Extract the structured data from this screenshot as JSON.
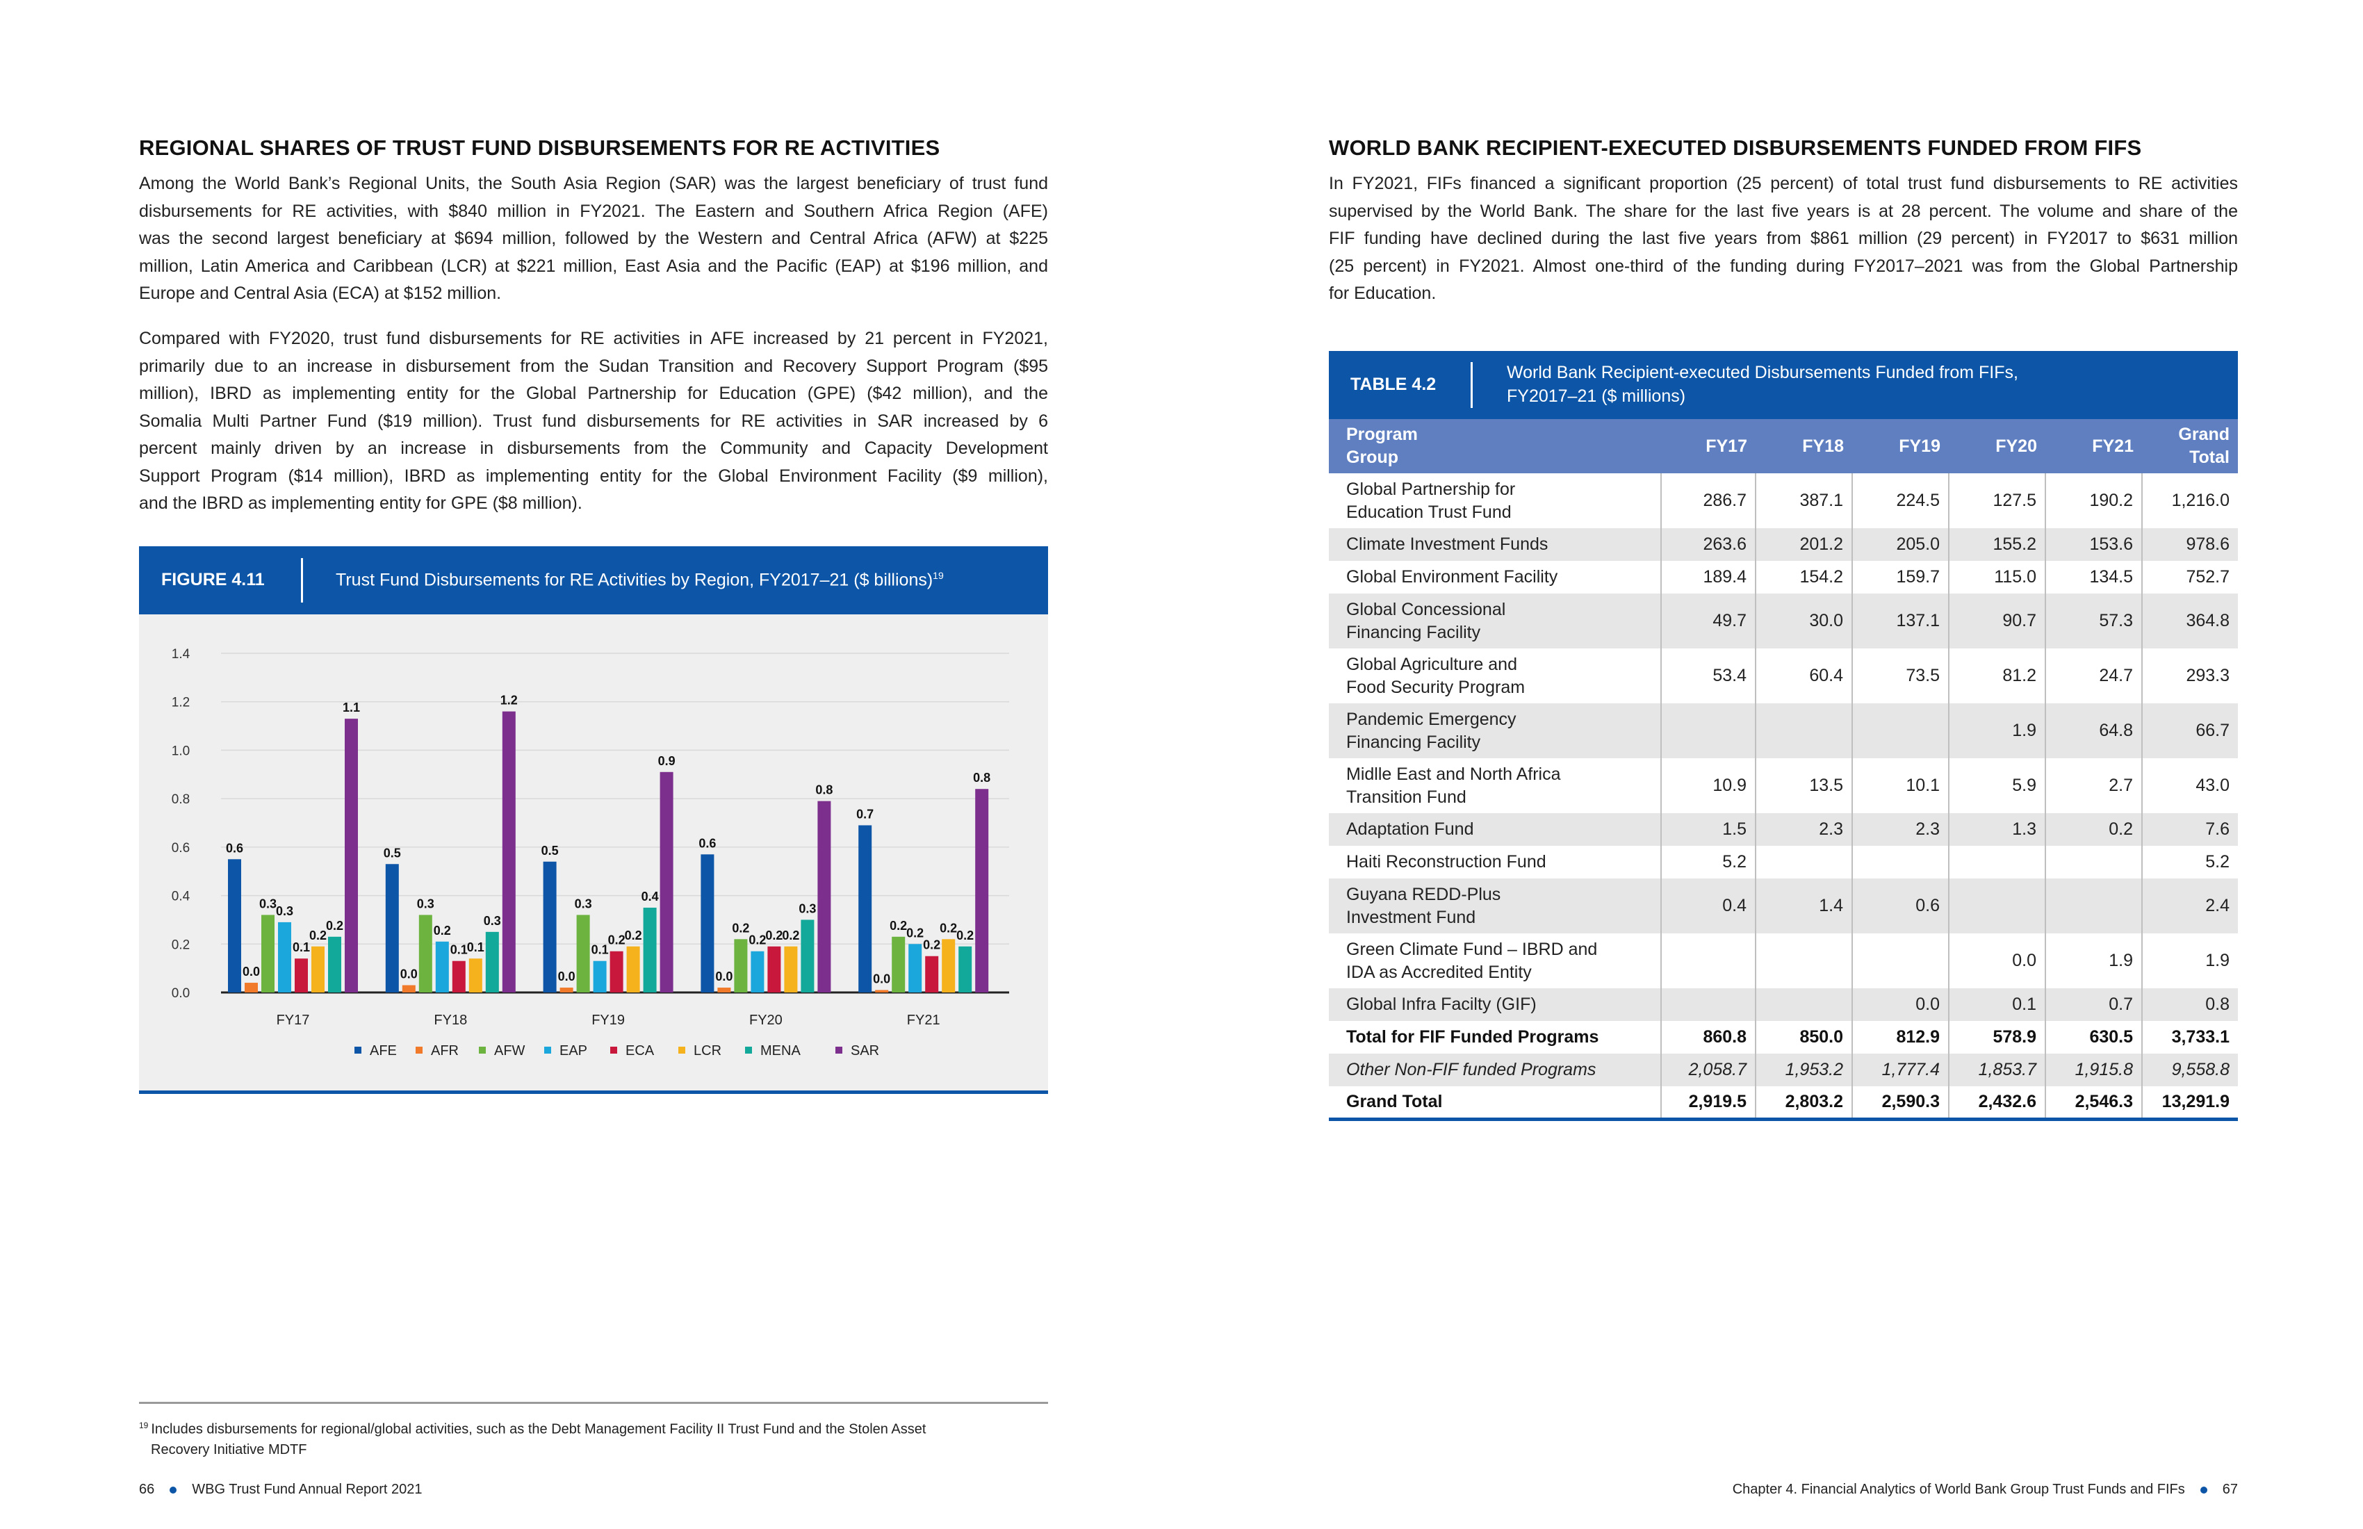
{
  "left_page": {
    "title": "REGIONAL SHARES OF TRUST FUND DISBURSEMENTS FOR RE ACTIVITIES",
    "paragraphs": [
      [
        "Among the World Bank’s Regional Units, the South Asia Region (SAR) was the largest beneficiary of trust fund",
        "disbursements for RE activities, with $840 million in FY2021. The Eastern and Southern Africa Region (AFE)",
        "was the second largest beneficiary at $694 million, followed by the Western and Central Africa (AFW) at $225",
        "million, Latin America and Caribbean (LCR) at $221 million, East Asia and the Pacific (EAP) at $196 million, and",
        "Europe and Central Asia (ECA) at $152 million."
      ],
      [
        "Compared with FY2020, trust fund disbursements for RE activities in AFE increased by 21 percent in FY2021,",
        "primarily due to an increase in disbursement from the Sudan Transition and Recovery Support Program ($95",
        "million), IBRD as implementing entity for the Global Partnership for Education (GPE) ($42 million), and the",
        "Somalia Multi Partner Fund ($19 million). Trust fund disbursements for RE activities in SAR increased by 6",
        "percent mainly driven by an increase in disbursements from the Community and Capacity Development",
        "Support Program ($14 million), IBRD as implementing entity for the Global Environment Facility ($9 million),",
        "and the IBRD as implementing entity for GPE ($8 million)."
      ]
    ],
    "figure": {
      "label": "FIGURE 4.11",
      "title": "Trust Fund Disbursements for RE Activities by Region, FY2017–21 ($ billions)",
      "footnote_ref": "19"
    },
    "footnote": {
      "number": "19",
      "line1": "Includes disbursements for regional/global activities, such as the Debt Management Facility II Trust Fund and the Stolen Asset",
      "line2": "Recovery Initiative MDTF"
    },
    "footer": {
      "page_number": "66",
      "report": "WBG Trust Fund Annual Report 2021"
    }
  },
  "chart_data": {
    "type": "bar",
    "categories": [
      "FY17",
      "FY18",
      "FY19",
      "FY20",
      "FY21"
    ],
    "ylim": [
      0,
      1.4
    ],
    "yticks": [
      "0.0",
      "0.2",
      "0.4",
      "0.6",
      "0.8",
      "1.0",
      "1.2",
      "1.4"
    ],
    "grid": true,
    "legend_position": "bottom",
    "series": [
      {
        "name": "AFE",
        "color": "#0d55a6",
        "values": [
          0.55,
          0.53,
          0.54,
          0.57,
          0.69
        ],
        "labels": [
          "0.6",
          "0.5",
          "0.5",
          "0.6",
          "0.7"
        ]
      },
      {
        "name": "AFR",
        "color": "#f07a2a",
        "values": [
          0.04,
          0.03,
          0.02,
          0.02,
          0.01
        ],
        "labels": [
          "0.0",
          "0.0",
          "0.0",
          "0.0",
          "0.0"
        ]
      },
      {
        "name": "AFW",
        "color": "#6cb33f",
        "values": [
          0.32,
          0.32,
          0.32,
          0.22,
          0.23
        ],
        "labels": [
          "0.3",
          "0.3",
          "0.3",
          "0.2",
          "0.2"
        ]
      },
      {
        "name": "EAP",
        "color": "#1ba6dc",
        "values": [
          0.29,
          0.21,
          0.13,
          0.17,
          0.2
        ],
        "labels": [
          "0.3",
          "0.2",
          "0.1",
          "0.2",
          "0.2"
        ]
      },
      {
        "name": "ECA",
        "color": "#c8193c",
        "values": [
          0.14,
          0.13,
          0.17,
          0.19,
          0.15
        ],
        "labels": [
          "0.1",
          "0.1",
          "0.2",
          "0.2",
          "0.2"
        ]
      },
      {
        "name": "LCR",
        "color": "#f6b21c",
        "values": [
          0.19,
          0.14,
          0.19,
          0.19,
          0.22
        ],
        "labels": [
          "0.2",
          "0.1",
          "0.2",
          "0.2",
          "0.2"
        ]
      },
      {
        "name": "MENA",
        "color": "#12a99a",
        "values": [
          0.23,
          0.25,
          0.35,
          0.3,
          0.19
        ],
        "labels": [
          "0.2",
          "0.3",
          "0.4",
          "0.3",
          "0.2"
        ]
      },
      {
        "name": "SAR",
        "color": "#7d2f8e",
        "values": [
          1.13,
          1.16,
          0.91,
          0.79,
          0.84
        ],
        "labels": [
          "1.1",
          "1.2",
          "0.9",
          "0.8",
          "0.8"
        ]
      }
    ]
  },
  "right_page": {
    "title": "WORLD BANK RECIPIENT-EXECUTED DISBURSEMENTS FUNDED FROM FIFS",
    "paragraph": [
      "In FY2021, FIFs financed a significant proportion (25 percent) of total trust fund disbursements to RE activities",
      "supervised by the World Bank. The share for the last five years is at 28 percent. The volume and share of the",
      "FIF funding have declined during the last five years from $861 million (29 percent) in FY2017 to $631 million",
      "(25 percent) in FY2021. Almost one-third of the funding during FY2017–2021 was from the Global Partnership",
      "for Education."
    ],
    "table": {
      "label": "TABLE 4.2",
      "title_line1": "World Bank Recipient-executed Disbursements Funded from FIFs,",
      "title_line2": "FY2017–21 ($ millions)",
      "headers": {
        "program_line1": "Program",
        "program_line2": "Group",
        "fy17": "FY17",
        "fy18": "FY18",
        "fy19": "FY19",
        "fy20": "FY20",
        "fy21": "FY21",
        "grand_line1": "Grand",
        "grand_line2": "Total"
      },
      "rows": [
        {
          "program": [
            "Global Partnership for",
            "Education Trust Fund"
          ],
          "values": [
            "286.7",
            "387.1",
            "224.5",
            "127.5",
            "190.2",
            "1,216.0"
          ]
        },
        {
          "program": [
            "Climate Investment Funds"
          ],
          "values": [
            "263.6",
            "201.2",
            "205.0",
            "155.2",
            "153.6",
            "978.6"
          ]
        },
        {
          "program": [
            "Global Environment Facility"
          ],
          "values": [
            "189.4",
            "154.2",
            "159.7",
            "115.0",
            "134.5",
            "752.7"
          ]
        },
        {
          "program": [
            "Global Concessional",
            "Financing Facility"
          ],
          "values": [
            "49.7",
            "30.0",
            "137.1",
            "90.7",
            "57.3",
            "364.8"
          ]
        },
        {
          "program": [
            "Global Agriculture and",
            "Food Security Program"
          ],
          "values": [
            "53.4",
            "60.4",
            "73.5",
            "81.2",
            "24.7",
            "293.3"
          ]
        },
        {
          "program": [
            "Pandemic Emergency",
            "Financing Facility"
          ],
          "values": [
            "",
            "",
            "",
            "1.9",
            "64.8",
            "66.7"
          ]
        },
        {
          "program": [
            "Midlle East and North Africa",
            "Transition Fund"
          ],
          "values": [
            "10.9",
            "13.5",
            "10.1",
            "5.9",
            "2.7",
            "43.0"
          ]
        },
        {
          "program": [
            "Adaptation Fund"
          ],
          "values": [
            "1.5",
            "2.3",
            "2.3",
            "1.3",
            "0.2",
            "7.6"
          ]
        },
        {
          "program": [
            "Haiti Reconstruction Fund"
          ],
          "values": [
            "5.2",
            "",
            "",
            "",
            "",
            "5.2"
          ]
        },
        {
          "program": [
            "Guyana REDD-Plus",
            "Investment Fund"
          ],
          "values": [
            "0.4",
            "1.4",
            "0.6",
            "",
            "",
            "2.4"
          ]
        },
        {
          "program": [
            "Green Climate Fund – IBRD and",
            "IDA as Accredited Entity"
          ],
          "values": [
            "",
            "",
            "",
            "0.0",
            "1.9",
            "1.9"
          ]
        },
        {
          "program": [
            "Global Infra Facilty (GIF)"
          ],
          "values": [
            "",
            "",
            "0.0",
            "0.1",
            "0.7",
            "0.8"
          ]
        }
      ],
      "total_row": {
        "program": "Total for FIF Funded Programs",
        "values": [
          "860.8",
          "850.0",
          "812.9",
          "578.9",
          "630.5",
          "3,733.1"
        ]
      },
      "other_row": {
        "program": "Other Non-FIF funded Programs",
        "values": [
          "2,058.7",
          "1,953.2",
          "1,777.4",
          "1,853.7",
          "1,915.8",
          "9,558.8"
        ]
      },
      "grand_row": {
        "program": "Grand Total",
        "values": [
          "2,919.5",
          "2,803.2",
          "2,590.3",
          "2,432.6",
          "2,546.3",
          "13,291.9"
        ]
      }
    },
    "footer": {
      "chapter": "Chapter 4. Financial Analytics of World Bank Group Trust Funds and FIFs",
      "page_number": "67"
    }
  }
}
